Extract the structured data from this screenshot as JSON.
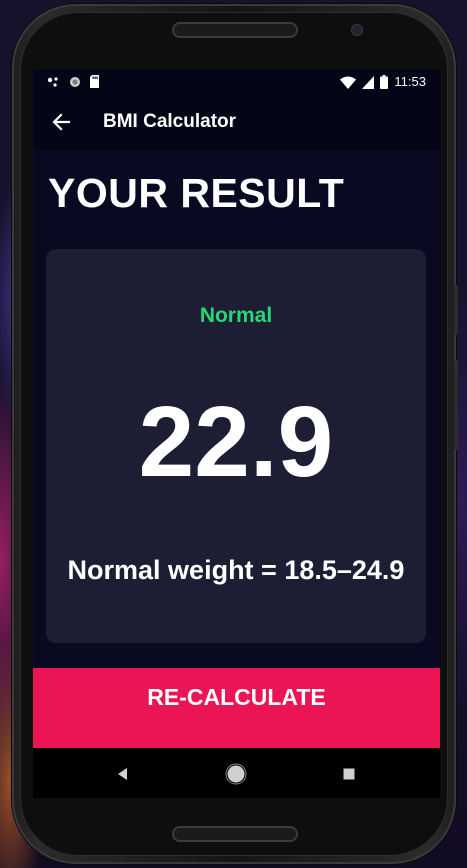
{
  "status_bar": {
    "time": "11:53",
    "left_icons": [
      "notification-dots-icon",
      "circle-icon",
      "sd-card-icon"
    ],
    "right_icons": [
      "wifi-icon",
      "signal-icon",
      "battery-icon"
    ]
  },
  "app_bar": {
    "back_icon": "arrow-left-icon",
    "title": "BMI Calculator"
  },
  "page": {
    "title": "YOUR RESULT"
  },
  "result": {
    "status": "Normal",
    "value": "22.9",
    "range_text": "Normal weight = 18.5–24.9"
  },
  "actions": {
    "recalculate_label": "RE-CALCULATE"
  },
  "nav_bar": {
    "buttons": [
      "back-triangle-icon",
      "home-circle-icon",
      "recents-square-icon"
    ]
  },
  "colors": {
    "background": "#090a22",
    "card": "#1d1e33",
    "accent": "#eb1555",
    "status_normal": "#24d876",
    "text": "#ffffff"
  }
}
